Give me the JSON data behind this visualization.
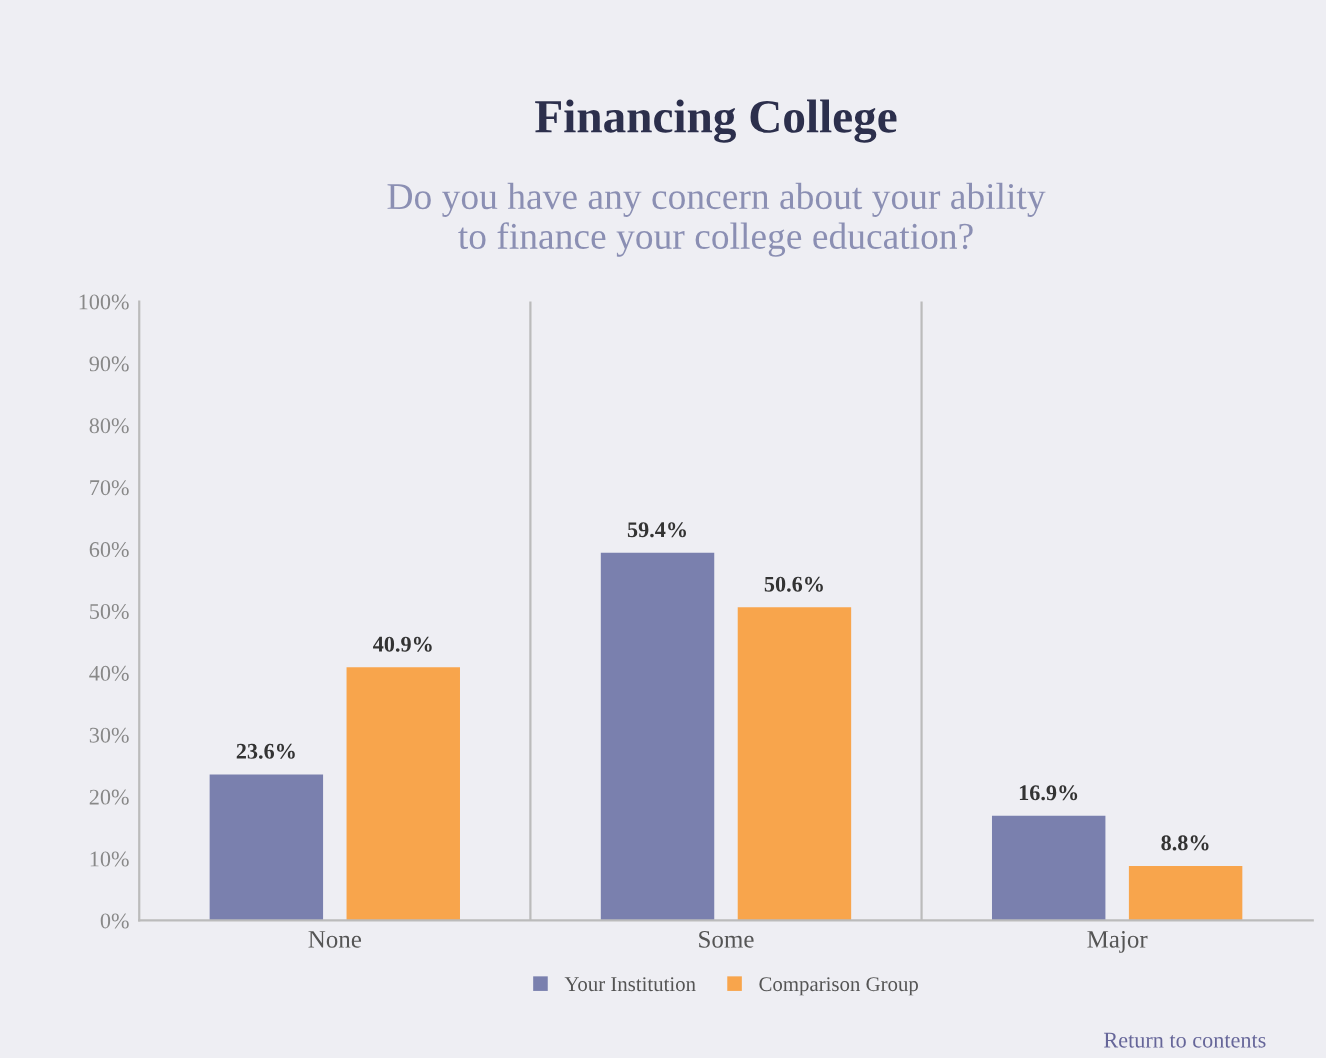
{
  "chart_data": {
    "type": "bar",
    "title": "Financing College",
    "subtitle": "Do you have any concern about your ability\nto finance your college education?",
    "categories": [
      "None",
      "Some",
      "Major"
    ],
    "series": [
      {
        "name": "Your Institution",
        "color": "#7a80ae",
        "values": [
          23.6,
          59.4,
          16.9
        ],
        "value_labels": [
          "23.6%",
          "59.4%",
          "16.9%"
        ]
      },
      {
        "name": "Comparison Group",
        "color": "#f8a54c",
        "values": [
          40.9,
          50.6,
          8.8
        ],
        "value_labels": [
          "40.9%",
          "50.6%",
          "8.8%"
        ]
      }
    ],
    "ylim": [
      0,
      100
    ],
    "yticks": [
      {
        "value": 0,
        "label": "0%"
      },
      {
        "value": 10,
        "label": "10%"
      },
      {
        "value": 20,
        "label": "20%"
      },
      {
        "value": 30,
        "label": "30%"
      },
      {
        "value": 40,
        "label": "40%"
      },
      {
        "value": 50,
        "label": "50%"
      },
      {
        "value": 60,
        "label": "60%"
      },
      {
        "value": 70,
        "label": "70%"
      },
      {
        "value": 80,
        "label": "80%"
      },
      {
        "value": 90,
        "label": "90%"
      },
      {
        "value": 100,
        "label": "100%"
      }
    ],
    "legend": "bottom",
    "grid": false,
    "annotations": [
      "Return to contents"
    ]
  }
}
